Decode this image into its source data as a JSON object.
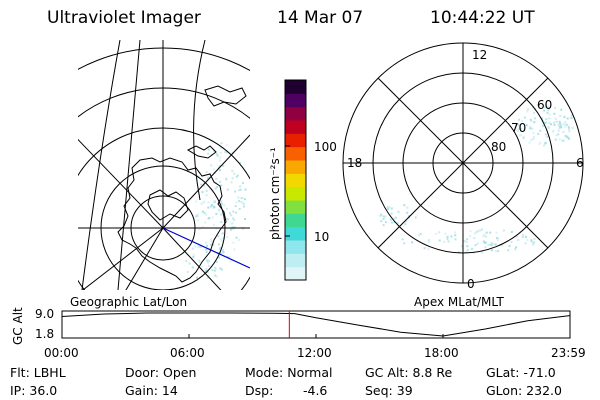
{
  "header": {
    "instrument": "Ultraviolet Imager",
    "date": "14 Mar 07",
    "time": "10:44:22 UT"
  },
  "colorbar": {
    "label": "photon cm⁻²s⁻¹",
    "ticks": [
      "100",
      "10"
    ],
    "scale": "log",
    "colors": [
      "#dff5f7",
      "#bfeef2",
      "#8fe6ec",
      "#40d8d8",
      "#40d890",
      "#80e040",
      "#c8e800",
      "#f0d800",
      "#f8a800",
      "#f86000",
      "#e82000",
      "#c00020",
      "#900040",
      "#500060",
      "#200030"
    ]
  },
  "left_map": {
    "title": "Geographic Lat/Lon",
    "grid_color": "#000000",
    "coast_color": "#000000",
    "meridian_highlight_color": "#0000cc"
  },
  "right_map": {
    "title": "Apex MLat/MLT",
    "mlt_labels": {
      "top": "12",
      "left": "18",
      "right": "6",
      "bottom": "0"
    },
    "mlat_labels": [
      "60",
      "70",
      "80"
    ]
  },
  "altitude_plot": {
    "ylabel": "GC Alt",
    "yticks": [
      "9.0",
      "1.8"
    ],
    "xticks": [
      "00:00",
      "06:00",
      "12:00",
      "18:00",
      "23:59"
    ],
    "current_time_marker_color": "#dd0000",
    "current_time_hours": 10.74,
    "orbit_data": {
      "type": "line",
      "x_hours": [
        0,
        2,
        4,
        6,
        8,
        10,
        11,
        12,
        14,
        16,
        18,
        20,
        22,
        23.98
      ],
      "alt_re": [
        7.9,
        8.7,
        9.0,
        9.0,
        9.0,
        8.9,
        8.8,
        7.5,
        5.2,
        3.0,
        1.8,
        4.0,
        6.6,
        8.2
      ],
      "ylim": [
        1.8,
        9.0
      ]
    }
  },
  "info": {
    "filter": "Flt: LBHL",
    "ip": "IP: 36.0",
    "door": "Door: Open",
    "gain": "Gain: 14",
    "mode": "Mode: Normal",
    "dsp": "Dsp:",
    "dsp_value": "-4.6",
    "gc_alt": "GC Alt: 8.8 Re",
    "seq": "Seq: 39",
    "glat": "GLat: -71.0",
    "glon": "GLon: 232.0"
  }
}
